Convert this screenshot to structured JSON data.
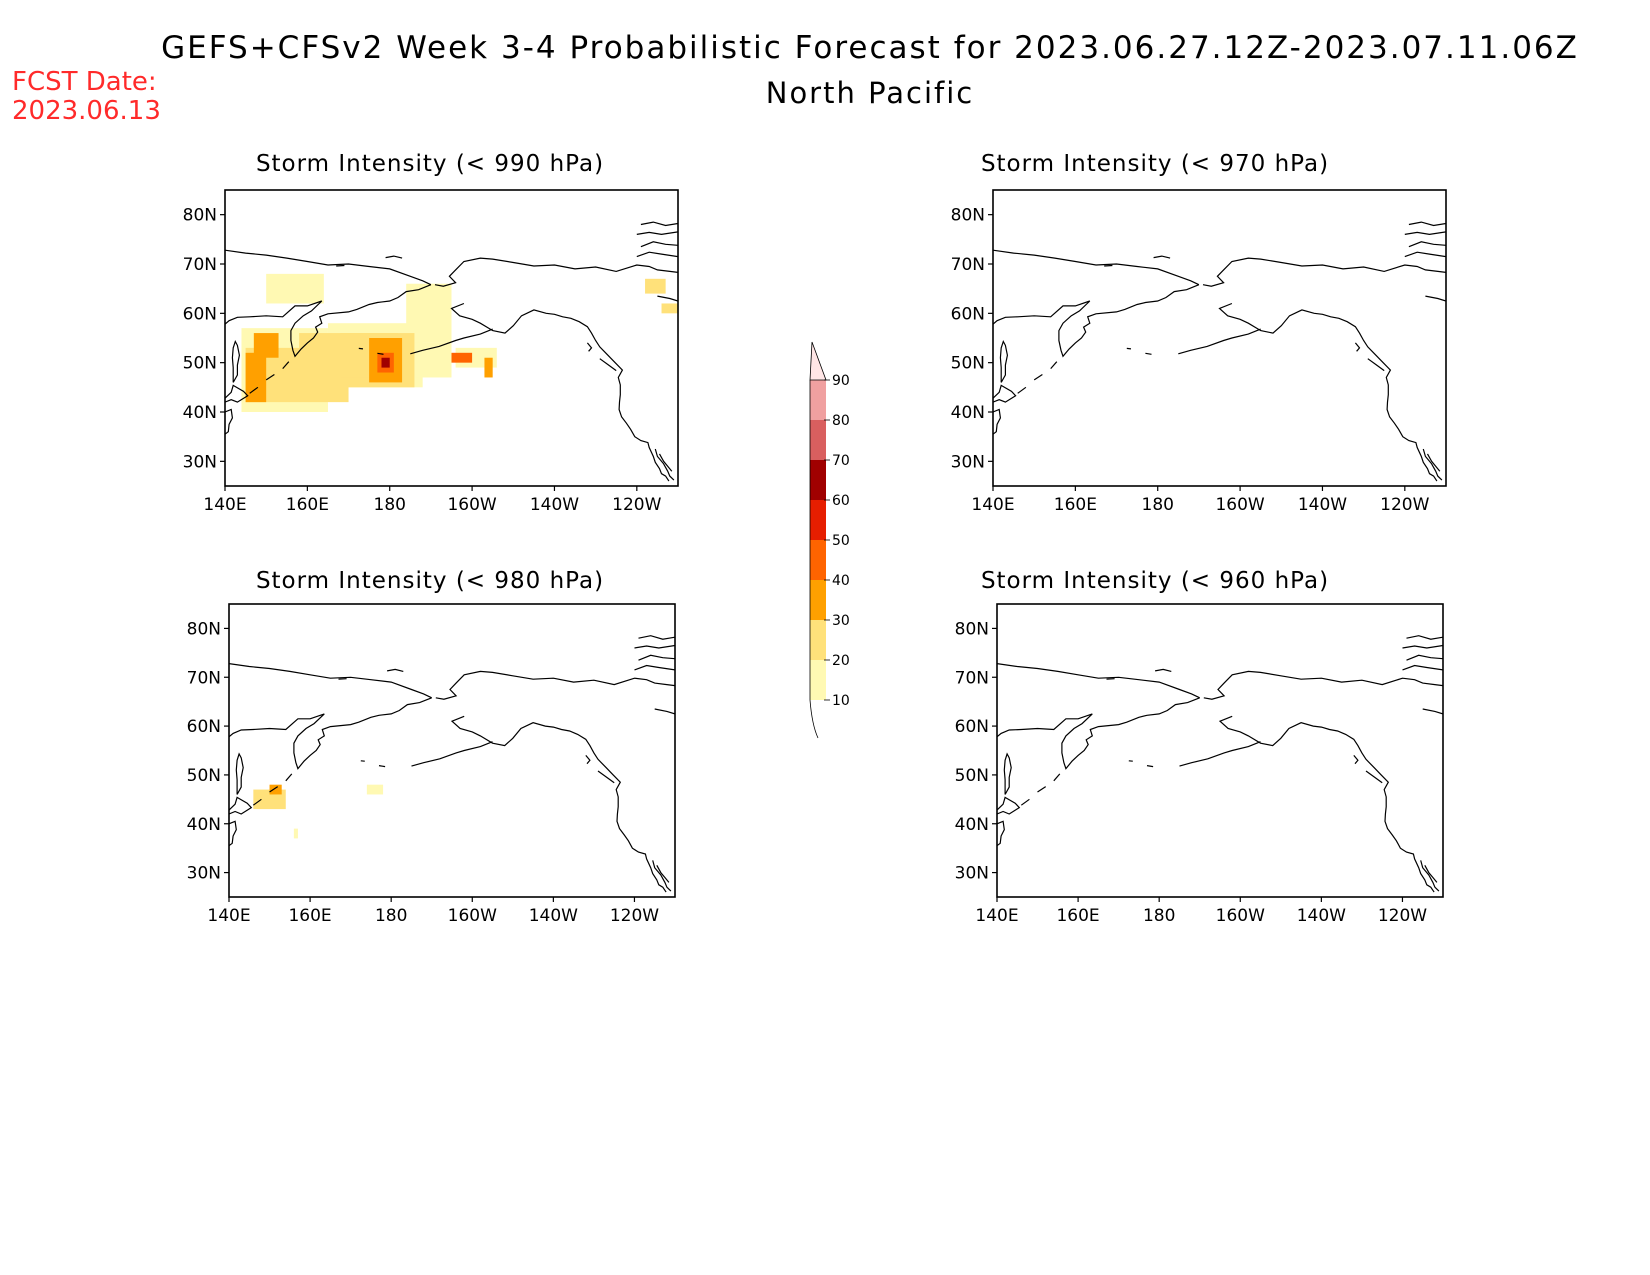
{
  "header": {
    "title": "GEFS+CFSv2 Week 3-4 Probabilistic Forecast for 2023.06.27.12Z-2023.07.11.06Z",
    "region": "North Pacific",
    "fcst_label": "FCST Date:",
    "fcst_date": "2023.06.13"
  },
  "panels": [
    {
      "title": "Storm Intensity (< 990 hPa)"
    },
    {
      "title": "Storm Intensity (< 970 hPa)"
    },
    {
      "title": "Storm Intensity (< 980 hPa)"
    },
    {
      "title": "Storm Intensity (< 960 hPa)"
    }
  ],
  "axes": {
    "lon_labels": [
      "140E",
      "160E",
      "180",
      "160W",
      "140W",
      "120W"
    ],
    "lat_labels": [
      "80N",
      "70N",
      "60N",
      "50N",
      "40N",
      "30N"
    ]
  },
  "legend": {
    "levels": [
      "10",
      "20",
      "30",
      "40",
      "50",
      "60",
      "70",
      "80",
      "90"
    ],
    "colors": [
      "#fff9b3",
      "#ffe17a",
      "#ffa000",
      "#ff6400",
      "#e61e00",
      "#a00000",
      "#d95f5f",
      "#f0a0a0",
      "#ffe6e6"
    ]
  },
  "colors": {
    "fcst_date": "#ff2a2a"
  }
}
